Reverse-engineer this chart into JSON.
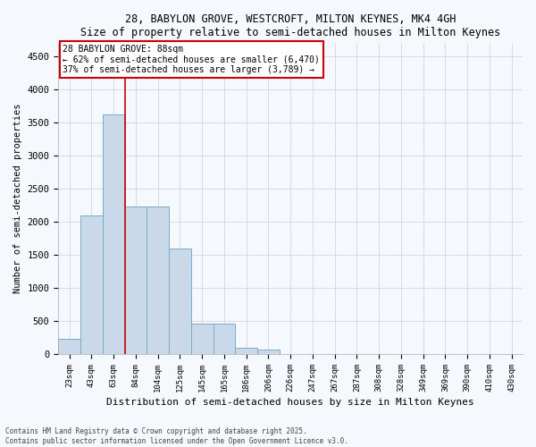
{
  "title_line1": "28, BABYLON GROVE, WESTCROFT, MILTON KEYNES, MK4 4GH",
  "title_line2": "Size of property relative to semi-detached houses in Milton Keynes",
  "xlabel": "Distribution of semi-detached houses by size in Milton Keynes",
  "ylabel": "Number of semi-detached properties",
  "footnote": "Contains HM Land Registry data © Crown copyright and database right 2025.\nContains public sector information licensed under the Open Government Licence v3.0.",
  "annotation_title": "28 BABYLON GROVE: 88sqm",
  "annotation_line2": "← 62% of semi-detached houses are smaller (6,470)",
  "annotation_line3": "37% of semi-detached houses are larger (3,789) →",
  "bar_color": "#c9d9ea",
  "bar_edge_color": "#7aaac8",
  "vline_color": "#cc0000",
  "vline_x_index": 2.5,
  "annotation_box_color": "#cc0000",
  "background_color": "#f5f8fc",
  "grid_color": "#c8d0da",
  "categories": [
    "23sqm",
    "43sqm",
    "63sqm",
    "84sqm",
    "104sqm",
    "125sqm",
    "145sqm",
    "165sqm",
    "186sqm",
    "206sqm",
    "226sqm",
    "247sqm",
    "267sqm",
    "287sqm",
    "308sqm",
    "328sqm",
    "349sqm",
    "369sqm",
    "390sqm",
    "410sqm",
    "430sqm"
  ],
  "values": [
    230,
    2100,
    3630,
    2230,
    2230,
    1600,
    460,
    460,
    100,
    75,
    0,
    0,
    0,
    0,
    0,
    0,
    0,
    0,
    0,
    0,
    0
  ],
  "ylim": [
    0,
    4700
  ],
  "yticks": [
    0,
    500,
    1000,
    1500,
    2000,
    2500,
    3000,
    3500,
    4000,
    4500
  ]
}
